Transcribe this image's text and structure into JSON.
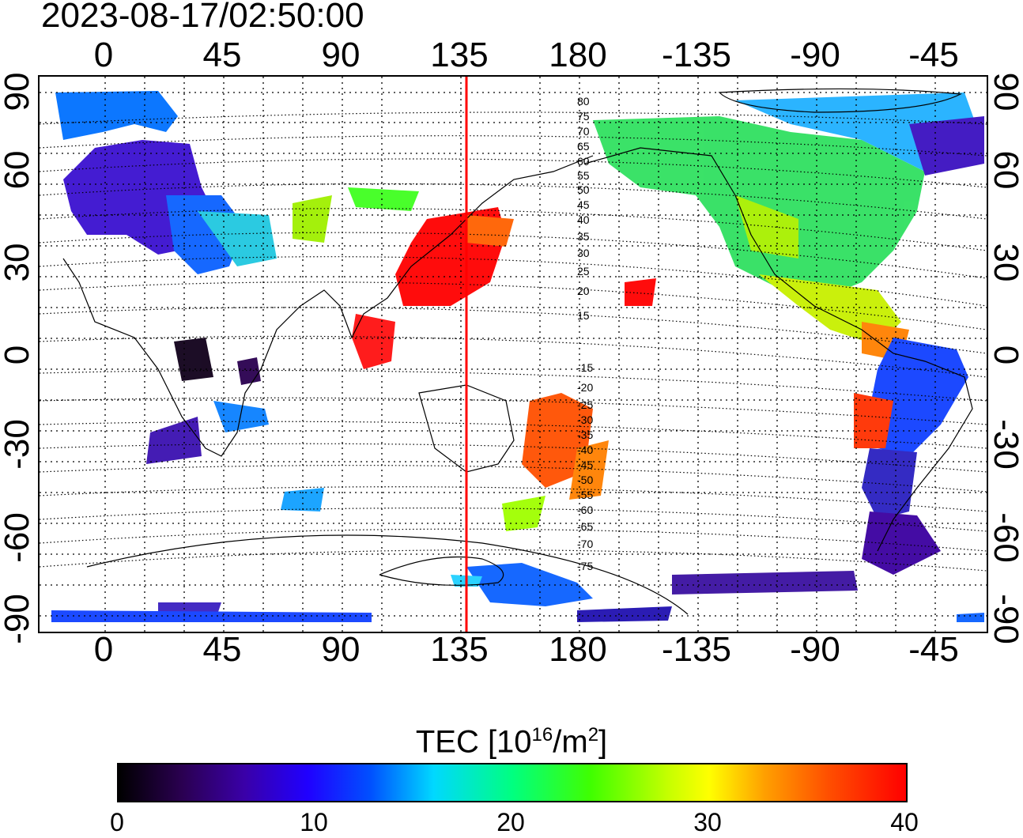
{
  "timestamp": "2023-08-17/02:50:00",
  "lon_ticks": [
    "0",
    "45",
    "90",
    "135",
    "180",
    "-135",
    "-90",
    "-45"
  ],
  "lat_ticks_left": [
    "90",
    "60",
    "30",
    "0",
    "-30",
    "-60",
    "-90"
  ],
  "lat_ticks_right": [
    "90",
    "60",
    "30",
    "0",
    "-30",
    "-60",
    "-90"
  ],
  "mlat_labels": [
    "80",
    "75",
    "70",
    "65",
    "60",
    "55",
    "50",
    "45",
    "40",
    "35",
    "30",
    "25",
    "20",
    "15",
    "-15",
    "-20",
    "-25",
    "-30",
    "-35",
    "-40",
    "-45",
    "-50",
    "-55",
    "-60",
    "-65",
    "-70",
    "-75"
  ],
  "colorbar": {
    "title": "TEC  [10",
    "title_sup1": "16",
    "title_mid": "/m",
    "title_sup2": "2",
    "title_end": "]",
    "ticks": [
      "0",
      "10",
      "20",
      "30",
      "40"
    ],
    "range": [
      0,
      40
    ]
  },
  "meridian_line": {
    "longitude": 135,
    "color": "#ff0000"
  },
  "map": {
    "projection": "equirectangular",
    "lon_range": [
      -20,
      340
    ],
    "lat_range": [
      -90,
      90
    ],
    "grid": "dotted"
  }
}
